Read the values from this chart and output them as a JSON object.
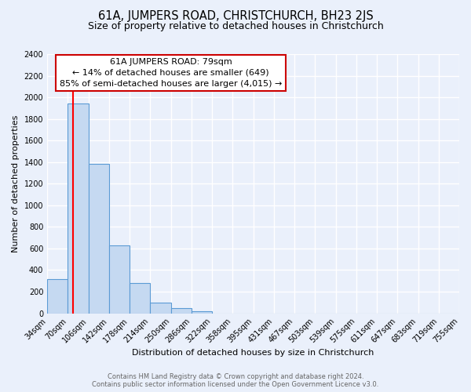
{
  "title": "61A, JUMPERS ROAD, CHRISTCHURCH, BH23 2JS",
  "subtitle": "Size of property relative to detached houses in Christchurch",
  "xlabel": "Distribution of detached houses by size in Christchurch",
  "ylabel": "Number of detached properties",
  "bin_labels": [
    "34sqm",
    "70sqm",
    "106sqm",
    "142sqm",
    "178sqm",
    "214sqm",
    "250sqm",
    "286sqm",
    "322sqm",
    "358sqm",
    "395sqm",
    "431sqm",
    "467sqm",
    "503sqm",
    "539sqm",
    "575sqm",
    "611sqm",
    "647sqm",
    "683sqm",
    "719sqm",
    "755sqm"
  ],
  "bar_heights": [
    320,
    1940,
    1380,
    625,
    280,
    95,
    45,
    20,
    0,
    0,
    0,
    0,
    0,
    0,
    0,
    0,
    0,
    0,
    0,
    0
  ],
  "bar_color": "#c5d9f1",
  "bar_edge_color": "#5b9bd5",
  "annotation_title": "61A JUMPERS ROAD: 79sqm",
  "annotation_line1": "← 14% of detached houses are smaller (649)",
  "annotation_line2": "85% of semi-detached houses are larger (4,015) →",
  "annotation_box_color": "#ffffff",
  "annotation_box_edge": "#cc0000",
  "ylim": [
    0,
    2400
  ],
  "yticks": [
    0,
    200,
    400,
    600,
    800,
    1000,
    1200,
    1400,
    1600,
    1800,
    2000,
    2200,
    2400
  ],
  "footer1": "Contains HM Land Registry data © Crown copyright and database right 2024.",
  "footer2": "Contains public sector information licensed under the Open Government Licence v3.0.",
  "bg_color": "#eaf0fb",
  "plot_bg_color": "#eaf0fb",
  "grid_color": "#ffffff",
  "title_fontsize": 10.5,
  "subtitle_fontsize": 9,
  "axis_label_fontsize": 8,
  "tick_fontsize": 7,
  "annotation_fontsize": 8,
  "footer_fontsize": 6
}
